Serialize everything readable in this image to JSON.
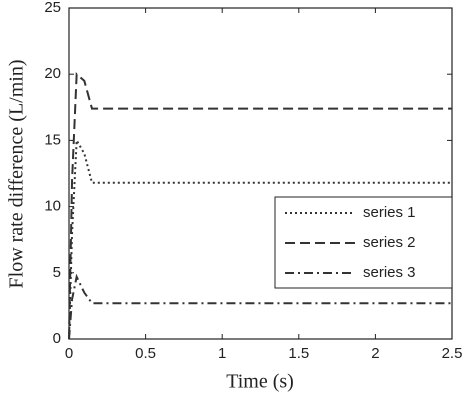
{
  "chart_data": {
    "type": "line",
    "xlabel": "Time (s)",
    "ylabel": "Flow rate difference (L/min)",
    "x": [
      0,
      0.02,
      0.05,
      0.1,
      0.15,
      2.5
    ],
    "series": [
      {
        "name": "series 1",
        "color": "#333333",
        "style": "dotted",
        "values": [
          0,
          8,
          15,
          14,
          11.8,
          11.8
        ]
      },
      {
        "name": "series 2",
        "color": "#333333",
        "style": "dashed",
        "values": [
          0,
          12,
          20,
          19.5,
          17.4,
          17.4
        ]
      },
      {
        "name": "series 3",
        "color": "#333333",
        "style": "dashdot",
        "values": [
          0,
          3,
          4.7,
          3.5,
          2.7,
          2.7
        ]
      }
    ],
    "xlim": [
      0,
      2.5
    ],
    "xticks": [
      0,
      0.5,
      1,
      1.5,
      2,
      2.5
    ],
    "ylim": [
      0,
      25
    ],
    "yticks": [
      0,
      5,
      10,
      15,
      20,
      25
    ],
    "grid": false,
    "legend": "right"
  }
}
